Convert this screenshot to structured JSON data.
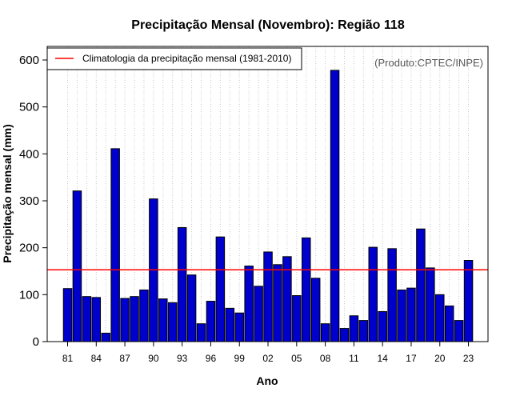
{
  "chart_data": {
    "type": "bar",
    "title": "Precipitação Mensal (Novembro): Região 118",
    "xlabel": "Ano",
    "ylabel": "Precipitação mensal (mm)",
    "ylim": [
      0,
      600
    ],
    "yticks": [
      0,
      100,
      200,
      300,
      400,
      500,
      600
    ],
    "grid": "vertical dotted",
    "categories": [
      "81",
      "82",
      "83",
      "84",
      "85",
      "86",
      "87",
      "88",
      "89",
      "90",
      "91",
      "92",
      "93",
      "94",
      "95",
      "96",
      "97",
      "98",
      "99",
      "00",
      "01",
      "02",
      "03",
      "04",
      "05",
      "06",
      "07",
      "08",
      "09",
      "10",
      "11",
      "12",
      "13",
      "14",
      "15",
      "16",
      "17",
      "18",
      "19",
      "20",
      "21",
      "22",
      "23"
    ],
    "x_tick_labels": [
      "81",
      "84",
      "87",
      "90",
      "93",
      "96",
      "99",
      "02",
      "05",
      "08",
      "11",
      "14",
      "17",
      "20",
      "23"
    ],
    "values": [
      113,
      321,
      96,
      94,
      18,
      411,
      92,
      96,
      110,
      304,
      91,
      83,
      243,
      142,
      38,
      86,
      223,
      71,
      61,
      161,
      118,
      191,
      164,
      181,
      98,
      221,
      135,
      38,
      578,
      28,
      55,
      45,
      201,
      64,
      198,
      110,
      114,
      240,
      157,
      100,
      76,
      45,
      173
    ],
    "bar_color": "#0000cd",
    "climatology": {
      "label": "Climatologia da precipitação mensal (1981-2010)",
      "value": 153,
      "color": "#ff0000"
    },
    "legend_position": "top-left",
    "source_note": "(Produto:CPTEC/INPE)"
  }
}
